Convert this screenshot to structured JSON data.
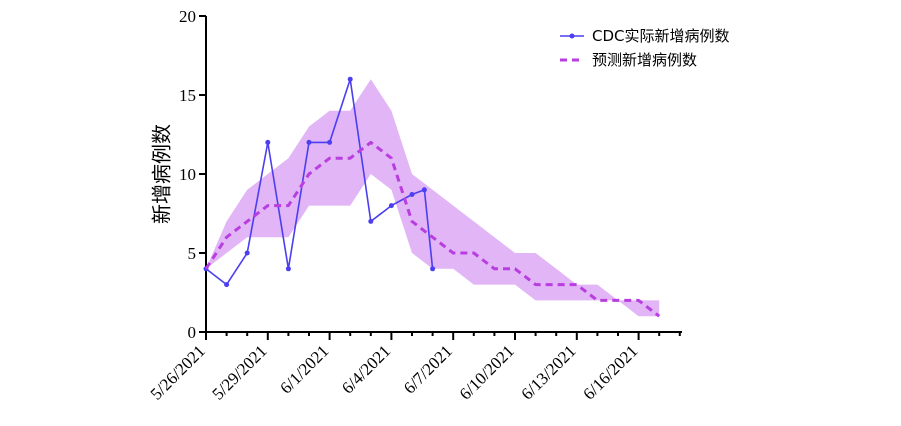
{
  "chart_data": {
    "type": "line",
    "title": "",
    "xlabel": "",
    "ylabel": "新增病例数",
    "ylim": [
      0,
      20
    ],
    "yticks": [
      0,
      5,
      10,
      15,
      20
    ],
    "xticks": [
      "5/26/2021",
      "5/29/2021",
      "6/1/2021",
      "6/4/2021",
      "6/7/2021",
      "6/10/2021",
      "6/13/2021",
      "6/16/2021"
    ],
    "legend_position": "top-right",
    "grid": false,
    "series": [
      {
        "name": "CDC实际新增病例数",
        "style": "solid-with-markers",
        "color": "#4b3ff0",
        "days": [
          0,
          1,
          2,
          3,
          4,
          5,
          6,
          7,
          8,
          9,
          10,
          10.6,
          11
        ],
        "values": [
          4,
          3,
          5,
          12,
          4,
          12,
          12,
          16,
          7,
          8,
          8.7,
          9,
          4
        ]
      },
      {
        "name": "预测新增病例数",
        "style": "dashed",
        "color": "#b93ee0",
        "days": [
          0,
          1,
          2,
          3,
          4,
          5,
          6,
          7,
          8,
          9,
          10,
          11,
          12,
          13,
          14,
          15,
          16,
          17,
          18,
          19,
          20,
          21,
          22
        ],
        "values": [
          4,
          6,
          7,
          8,
          8,
          10,
          11,
          11,
          12,
          11,
          7,
          6,
          5,
          5,
          4,
          4,
          3,
          3,
          3,
          2,
          2,
          2,
          1
        ]
      }
    ],
    "band": {
      "color": "#dca8f4",
      "days": [
        0,
        1,
        2,
        3,
        4,
        5,
        6,
        7,
        8,
        9,
        10,
        11,
        12,
        13,
        14,
        15,
        16,
        17,
        18,
        19,
        20,
        21,
        22
      ],
      "upper": [
        4,
        7,
        9,
        10,
        11,
        13,
        14,
        14,
        16,
        14,
        10,
        9,
        8,
        7,
        6,
        5,
        5,
        4,
        3,
        3,
        2,
        2,
        2
      ],
      "lower": [
        4,
        5,
        6,
        6,
        6,
        8,
        8,
        8,
        10,
        9,
        5,
        4,
        4,
        3,
        3,
        3,
        2,
        2,
        2,
        2,
        2,
        1,
        1
      ]
    }
  }
}
